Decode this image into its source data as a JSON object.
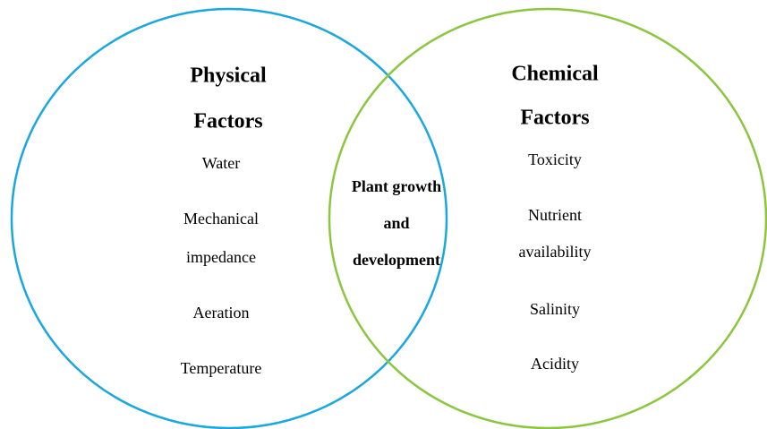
{
  "left": {
    "title": [
      "Physical",
      "Factors"
    ],
    "items": [
      "Water",
      "Mechanical",
      "impedance",
      "Aeration",
      "Temperature"
    ]
  },
  "right": {
    "title": [
      "Chemical",
      "Factors"
    ],
    "items": [
      "Toxicity",
      "Nutrient",
      "availability",
      "Salinity",
      "Acidity"
    ]
  },
  "center": [
    "Plant growth",
    "and",
    "development"
  ]
}
